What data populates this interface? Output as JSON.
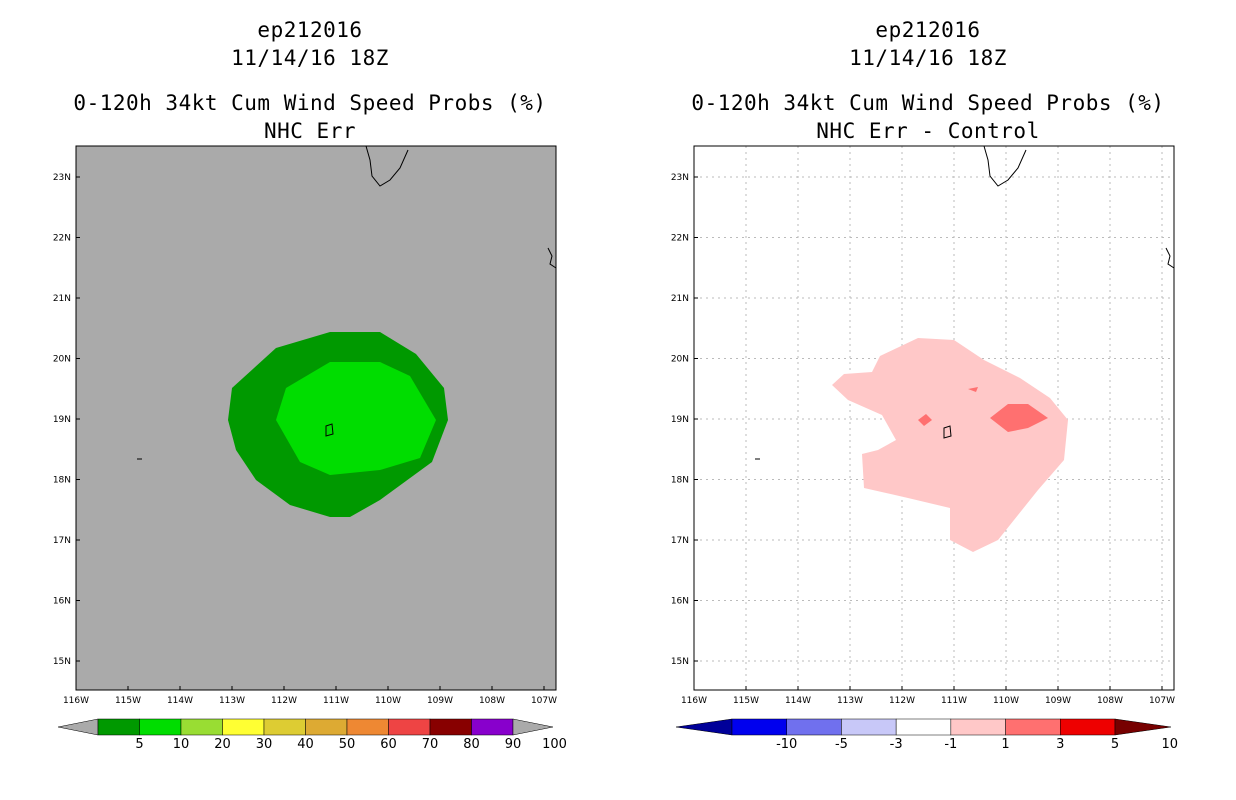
{
  "panels": [
    {
      "id": "left",
      "storm": "ep212016",
      "datetime": "11/14/16 18Z",
      "product": "0-120h 34kt Cum Wind Speed Probs (%)",
      "subtitle": "NHC Err",
      "background_color": "#aaaaaa",
      "grid": false,
      "lat_labels": [
        "23N",
        "22N",
        "21N",
        "20N",
        "19N",
        "18N",
        "17N",
        "16N",
        "15N"
      ],
      "lon_labels": [
        "116W",
        "115W",
        "114W",
        "113W",
        "112W",
        "111W",
        "110W",
        "109W",
        "108W",
        "107W"
      ],
      "colorbar": {
        "labels": [
          "5",
          "10",
          "20",
          "30",
          "40",
          "50",
          "60",
          "70",
          "80",
          "90",
          "100"
        ],
        "colors": [
          "#aaaaaa",
          "#009900",
          "#00dd00",
          "#99dd33",
          "#ffff33",
          "#ddcc33",
          "#ddaa33",
          "#ee8833",
          "#ee4444",
          "#880000",
          "#8800cc",
          "#aaaaaa"
        ]
      },
      "contours": [
        {
          "level": "5-10",
          "color": "#009900"
        },
        {
          "level": "10-20",
          "color": "#00dd00"
        }
      ]
    },
    {
      "id": "right",
      "storm": "ep212016",
      "datetime": "11/14/16 18Z",
      "product": "0-120h 34kt Cum Wind Speed Probs (%)",
      "subtitle": "NHC Err - Control",
      "background_color": "#ffffff",
      "grid": true,
      "lat_labels": [
        "23N",
        "22N",
        "21N",
        "20N",
        "19N",
        "18N",
        "17N",
        "16N",
        "15N"
      ],
      "lon_labels": [
        "116W",
        "115W",
        "114W",
        "113W",
        "112W",
        "111W",
        "110W",
        "109W",
        "108W",
        "107W"
      ],
      "colorbar": {
        "labels": [
          "-10",
          "-5",
          "-3",
          "-1",
          "1",
          "3",
          "5",
          "10"
        ],
        "colors": [
          "#000099",
          "#0000ee",
          "#7070ee",
          "#c8c8f8",
          "#ffffff",
          "#ffc8c8",
          "#ff7070",
          "#ee0000",
          "#770000"
        ]
      },
      "contours": [
        {
          "level": "1-3",
          "color": "#ffc8c8"
        },
        {
          "level": "3-5",
          "color": "#ff7070"
        }
      ]
    }
  ]
}
